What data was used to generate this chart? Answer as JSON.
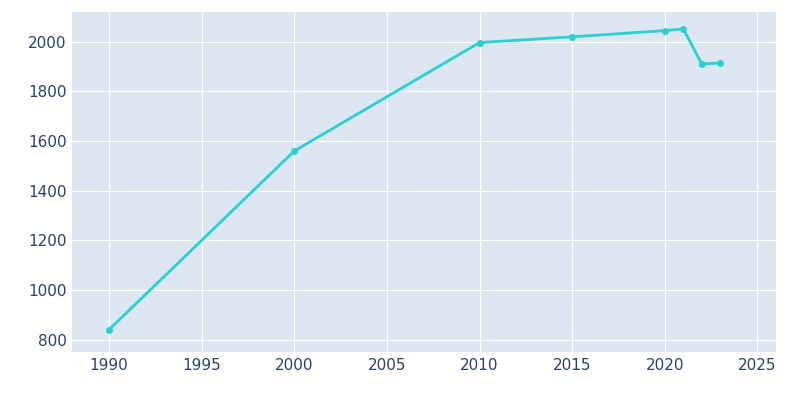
{
  "years": [
    1990,
    2000,
    2010,
    2015,
    2020,
    2021,
    2022,
    2023
  ],
  "population": [
    840,
    1560,
    1997,
    2020,
    2045,
    2052,
    1910,
    1915
  ],
  "line_color": "#2acfcf",
  "marker": "o",
  "marker_size": 4,
  "line_width": 2,
  "xlabel": "",
  "ylabel": "",
  "xlim": [
    1988,
    2026
  ],
  "ylim": [
    750,
    2120
  ],
  "xticks": [
    1990,
    1995,
    2000,
    2005,
    2010,
    2015,
    2020,
    2025
  ],
  "yticks": [
    800,
    1000,
    1200,
    1400,
    1600,
    1800,
    2000
  ],
  "axes_background_color": "#dce6f0",
  "figure_background": "#ffffff",
  "grid_color": "#ffffff",
  "tick_label_color": "#2d3f6b",
  "tick_label_fontsize": 11
}
